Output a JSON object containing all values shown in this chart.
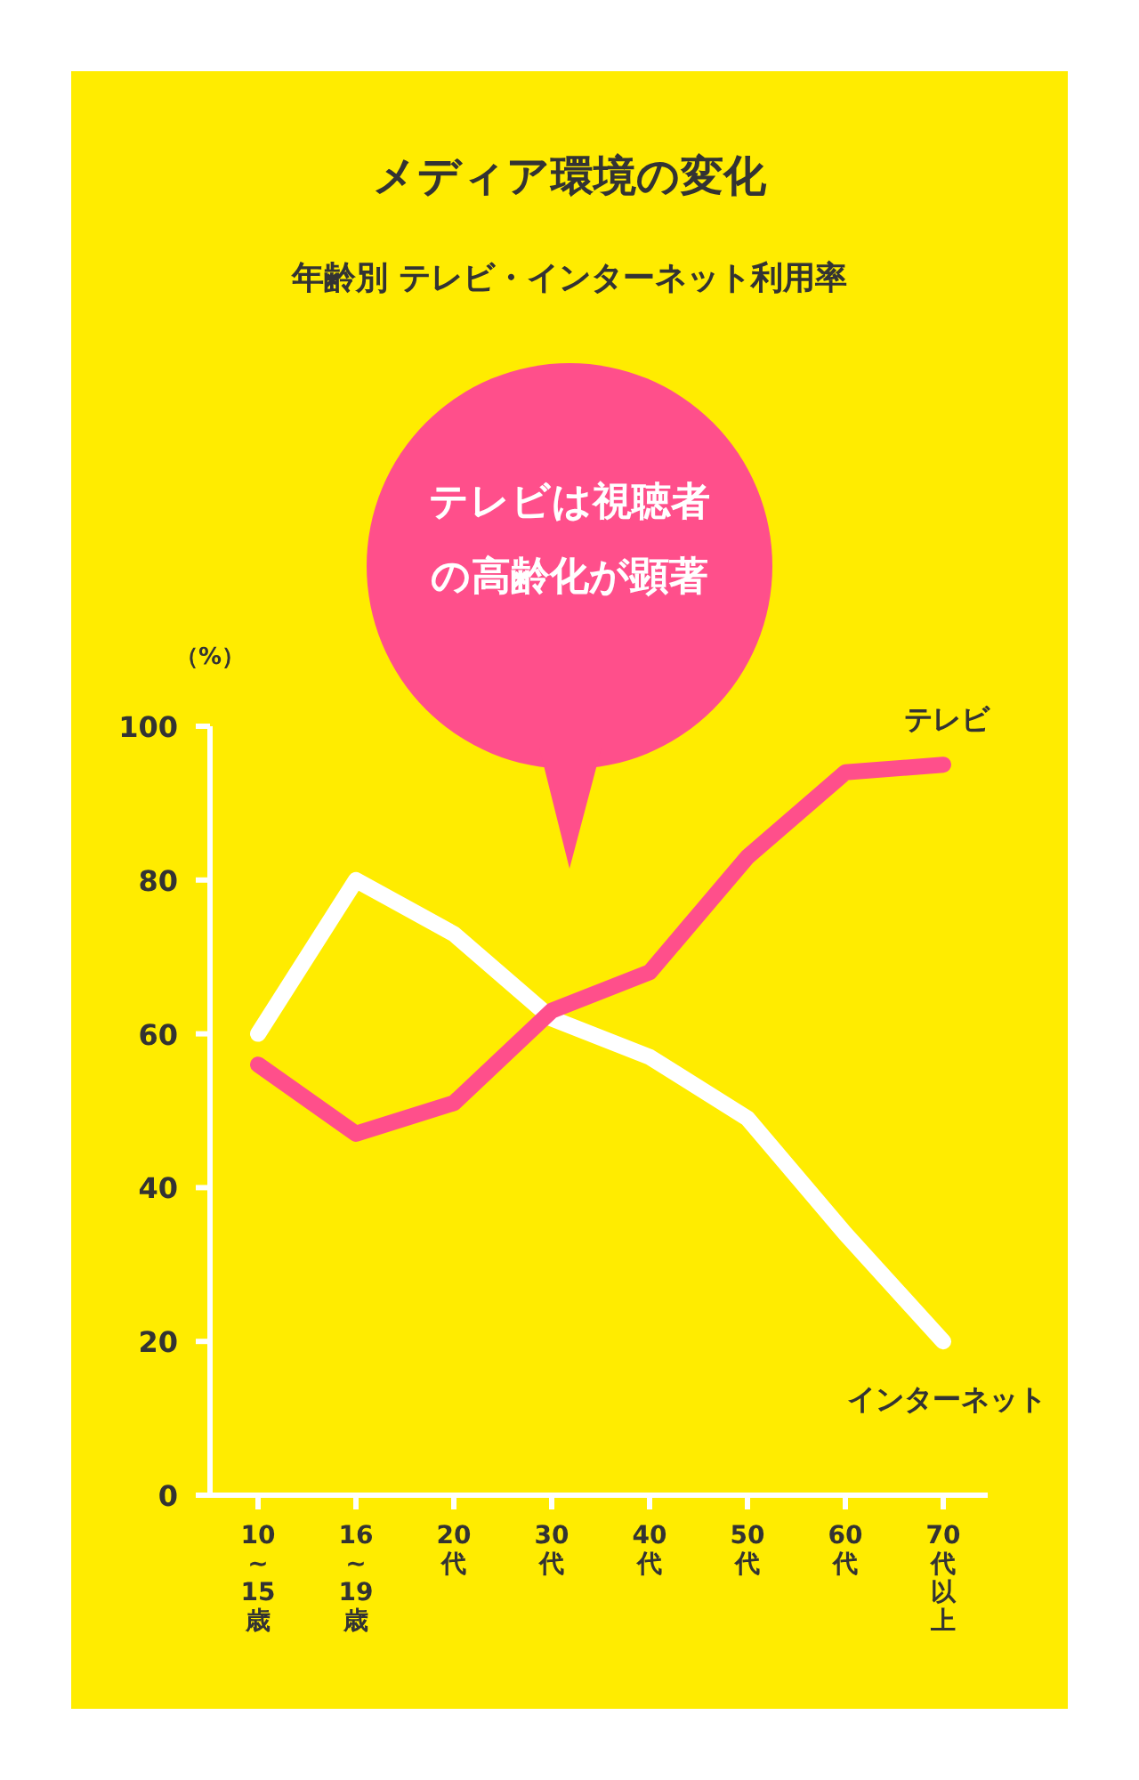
{
  "chart_data": {
    "type": "line",
    "title": "メディア環境の変化",
    "subtitle": "年齢別 テレビ・インターネット利用率",
    "ylabel": "（%）",
    "annotations": [
      "テレビは視聴者の高齢化が顕著"
    ],
    "categories": [
      "10~15歳",
      "16~19歳",
      "20代",
      "30代",
      "40代",
      "50代",
      "60代",
      "70代以上"
    ],
    "series": [
      {
        "name": "インターネット",
        "color": "#ffffff",
        "values": [
          60,
          80,
          73,
          62,
          57,
          49,
          34,
          20
        ]
      },
      {
        "name": "テレビ",
        "color": "#ff4f8b",
        "values": [
          56,
          47,
          51,
          63,
          68,
          83,
          94,
          95
        ]
      }
    ],
    "ylim": [
      0,
      100
    ],
    "yticks": [
      0,
      20,
      40,
      60,
      80,
      100
    ],
    "grid": false,
    "legend": false
  }
}
